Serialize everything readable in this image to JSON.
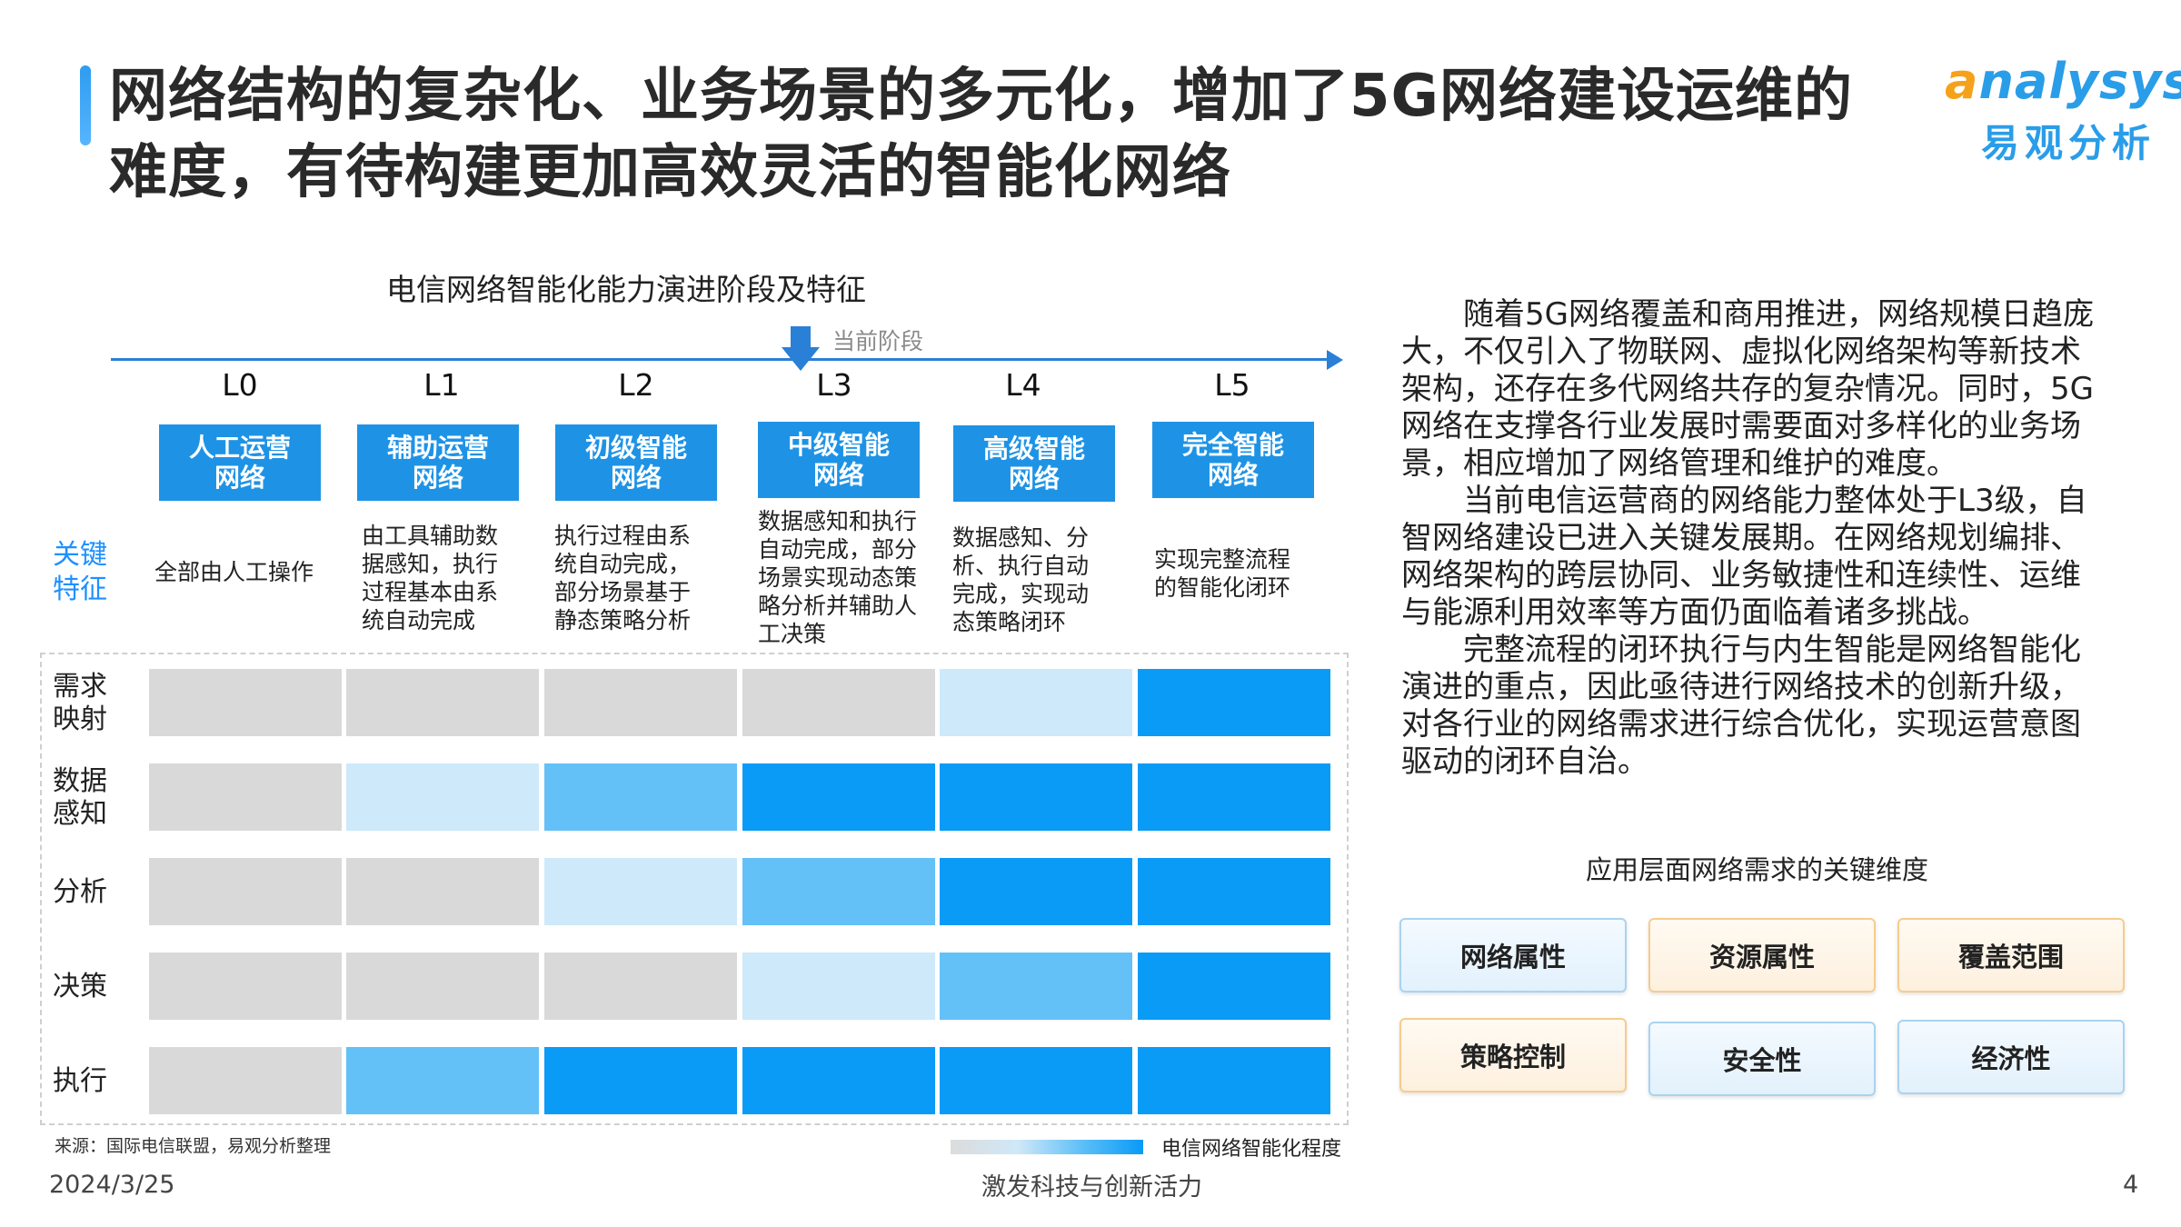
{
  "title": "网络结构的复杂化、业务场景的多元化，增加了5G网络建设运维的难度，有待构建更加高效灵活的智能化网络",
  "logo": {
    "en": "nalysys",
    "en_initial": "a",
    "cn": "易观分析"
  },
  "chart": {
    "title": "电信网络智能化能力演进阶段及特征",
    "current_stage_label": "当前阶段",
    "key_features_label": "关键特征",
    "levels": [
      {
        "level": "L0",
        "name": "人工运营网络",
        "desc": "全部由人工操作"
      },
      {
        "level": "L1",
        "name": "辅助运营网络",
        "desc": "由工具辅助数据感知，执行过程基本由系统自动完成"
      },
      {
        "level": "L2",
        "name": "初级智能网络",
        "desc": "执行过程由系统自动完成，部分场景基于静态策略分析"
      },
      {
        "level": "L3",
        "name": "中级智能网络",
        "desc": "数据感知和执行自动完成，部分场景实现动态策略分析并辅助人工决策"
      },
      {
        "level": "L4",
        "name": "高级智能网络",
        "desc": "数据感知、分析、执行自动完成，实现动态策略闭环"
      },
      {
        "level": "L5",
        "name": "完全智能网络",
        "desc": "实现完整流程的智能化闭环"
      }
    ],
    "rows": [
      {
        "label": "需求映射",
        "levels": [
          0,
          0,
          0,
          0,
          1,
          3
        ]
      },
      {
        "label": "数据感知",
        "levels": [
          0,
          1,
          2,
          3,
          3,
          3
        ]
      },
      {
        "label": "分析",
        "levels": [
          0,
          0,
          1,
          2,
          3,
          3
        ]
      },
      {
        "label": "决策",
        "levels": [
          0,
          0,
          0,
          1,
          2,
          3
        ]
      },
      {
        "label": "执行",
        "levels": [
          0,
          2,
          3,
          3,
          3,
          3
        ]
      }
    ],
    "palette": [
      "#d9d9d9",
      "#cde9fa",
      "#63c1f8",
      "#0a9bf7"
    ],
    "source": "来源：国际电信联盟，易观分析整理",
    "legend_label": "电信网络智能化程度"
  },
  "paragraphs": [
    "随着5G网络覆盖和商用推进，网络规模日趋庞大，不仅引入了物联网、虚拟化网络架构等新技术架构，还存在多代网络共存的复杂情况。同时，5G网络在支撑各行业发展时需要面对多样化的业务场景，相应增加了网络管理和维护的难度。",
    "当前电信运营商的网络能力整体处于L3级，自智网络建设已进入关键发展期。在网络规划编排、网络架构的跨层协同、业务敏捷性和连续性、运维与能源利用效率等方面仍面临着诸多挑战。",
    "完整流程的闭环执行与内生智能是网络智能化演进的重点，因此亟待进行网络技术的创新升级，对各行业的网络需求进行综合优化，实现运营意图驱动的闭环自治。"
  ],
  "dimensions": {
    "title": "应用层面网络需求的关键维度",
    "items": [
      {
        "label": "网络属性",
        "style": "blue"
      },
      {
        "label": "资源属性",
        "style": "orange"
      },
      {
        "label": "覆盖范围",
        "style": "orange"
      },
      {
        "label": "策略控制",
        "style": "orange"
      },
      {
        "label": "安全性",
        "style": "blue"
      },
      {
        "label": "经济性",
        "style": "blue"
      }
    ]
  },
  "footer": {
    "date": "2024/3/25",
    "slogan": "激发科技与创新活力",
    "page": "4"
  }
}
